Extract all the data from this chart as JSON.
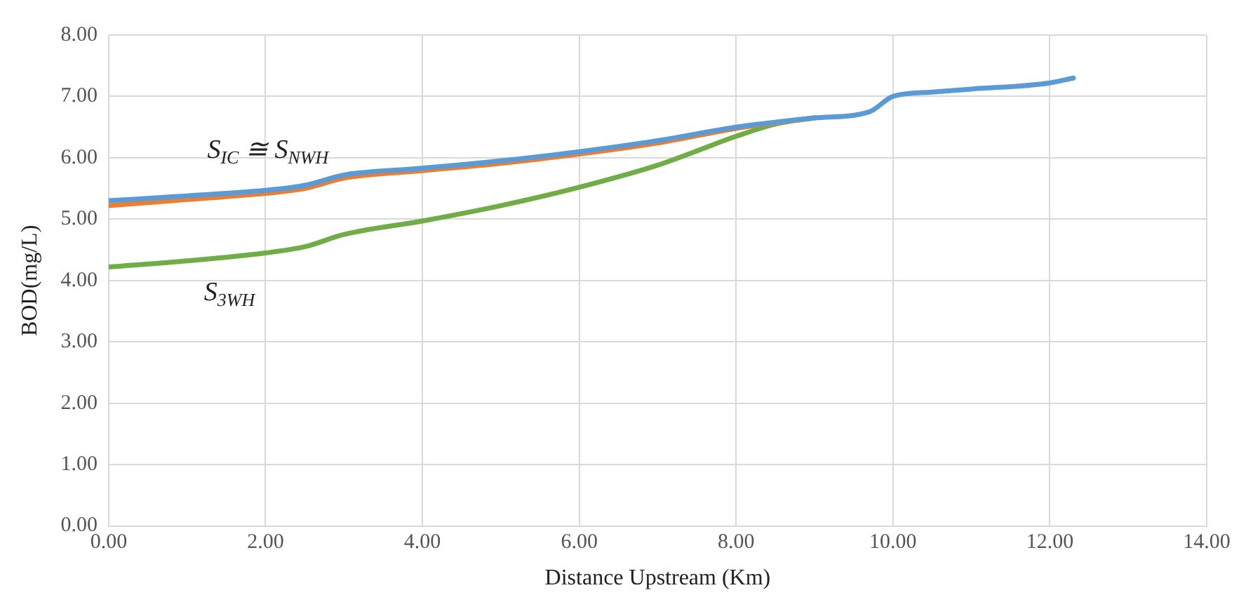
{
  "chart_data": {
    "type": "line",
    "xlabel": "Distance Upstream (Km)",
    "ylabel": "BOD(mg/L)",
    "xlim": [
      0,
      14
    ],
    "xticks": [
      {
        "value": 0,
        "label": "0.00"
      },
      {
        "value": 2,
        "label": "2.00"
      },
      {
        "value": 4,
        "label": "4.00"
      },
      {
        "value": 6,
        "label": "6.00"
      },
      {
        "value": 8,
        "label": "8.00"
      },
      {
        "value": 10,
        "label": "10.00"
      },
      {
        "value": 12,
        "label": "12.00"
      },
      {
        "value": 14,
        "label": "14.00"
      }
    ],
    "ylim": [
      0,
      8
    ],
    "yticks": [
      {
        "value": 0,
        "label": "0.00"
      },
      {
        "value": 1,
        "label": "1.00"
      },
      {
        "value": 2,
        "label": "2.00"
      },
      {
        "value": 3,
        "label": "3.00"
      },
      {
        "value": 4,
        "label": "4.00"
      },
      {
        "value": 5,
        "label": "5.00"
      },
      {
        "value": 6,
        "label": "6.00"
      },
      {
        "value": 7,
        "label": "7.00"
      },
      {
        "value": 8,
        "label": "8.00"
      }
    ],
    "grid": true,
    "legend": false,
    "marker": "none",
    "line_style": "solid",
    "x": [
      0,
      1,
      2,
      2.5,
      3,
      4,
      5,
      6,
      7,
      8,
      8.5,
      9,
      9.7,
      10,
      10.5,
      11,
      12,
      12.3
    ],
    "series": [
      {
        "color": "#5b9bd5",
        "values": [
          5.3,
          5.38,
          5.47,
          5.55,
          5.72,
          5.83,
          5.95,
          6.1,
          6.28,
          6.5,
          6.58,
          6.65,
          6.75,
          7.0,
          7.07,
          7.12,
          7.22,
          7.3
        ]
      },
      {
        "color": "#ed7d31",
        "values": [
          5.22,
          5.32,
          5.42,
          5.5,
          5.67,
          5.79,
          5.91,
          6.06,
          6.24,
          6.48,
          6.57,
          6.65,
          null,
          null,
          null,
          null,
          null,
          null
        ]
      },
      {
        "color": "#70ad47",
        "values": [
          4.22,
          4.32,
          4.45,
          4.55,
          4.75,
          4.97,
          5.22,
          5.52,
          5.88,
          6.35,
          6.55,
          6.65,
          null,
          null,
          null,
          null,
          null,
          null
        ]
      }
    ],
    "annotations": [
      "S$_{IC}$ ≅ S$_{NWH}$",
      "S$_{3WH}$"
    ]
  }
}
